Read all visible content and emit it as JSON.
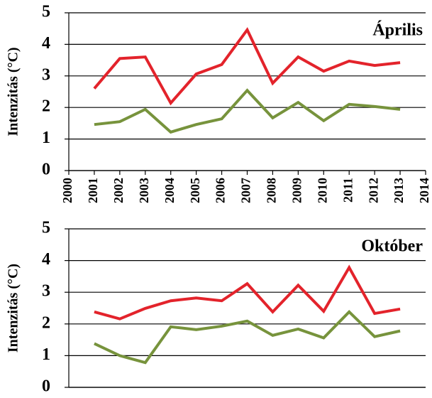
{
  "charts": [
    {
      "type": "line",
      "title": "Április",
      "y_label": "Intenzitás (°C)",
      "x": [
        2001,
        2002,
        2003,
        2004,
        2005,
        2006,
        2007,
        2008,
        2009,
        2010,
        2011,
        2012,
        2013
      ],
      "xlim": [
        2000,
        2014
      ],
      "xticks": [
        2000,
        2001,
        2002,
        2003,
        2004,
        2005,
        2006,
        2007,
        2008,
        2009,
        2010,
        2011,
        2012,
        2013,
        2014
      ],
      "ylim": [
        0,
        5
      ],
      "yticks": [
        0,
        1,
        2,
        3,
        4,
        5
      ],
      "grid": true,
      "series": [
        {
          "color": "#e3232b",
          "values": [
            2.6,
            3.55,
            3.6,
            2.14,
            3.06,
            3.36,
            4.46,
            2.77,
            3.6,
            3.15,
            3.47,
            3.33,
            3.42
          ]
        },
        {
          "color": "#77933c",
          "values": [
            1.46,
            1.55,
            1.94,
            1.22,
            1.46,
            1.64,
            2.54,
            1.67,
            2.16,
            1.58,
            2.1,
            2.03,
            1.94
          ]
        }
      ]
    },
    {
      "type": "line",
      "title": "Október",
      "y_label": "Intenzitás (°C)",
      "x": [
        2001,
        2002,
        2003,
        2004,
        2005,
        2006,
        2007,
        2008,
        2009,
        2010,
        2011,
        2012,
        2013
      ],
      "xlim": [
        2000,
        2014
      ],
      "ylim": [
        0,
        5
      ],
      "yticks": [
        0,
        1,
        2,
        3,
        4,
        5
      ],
      "grid": true,
      "series": [
        {
          "color": "#e3232b",
          "values": [
            2.38,
            2.16,
            2.49,
            2.73,
            2.82,
            2.73,
            3.27,
            2.38,
            3.22,
            2.4,
            3.78,
            2.33,
            2.47
          ]
        },
        {
          "color": "#77933c",
          "values": [
            1.38,
            1.0,
            0.78,
            1.91,
            1.82,
            1.93,
            2.09,
            1.64,
            1.84,
            1.56,
            2.38,
            1.6,
            1.78
          ]
        }
      ]
    }
  ]
}
